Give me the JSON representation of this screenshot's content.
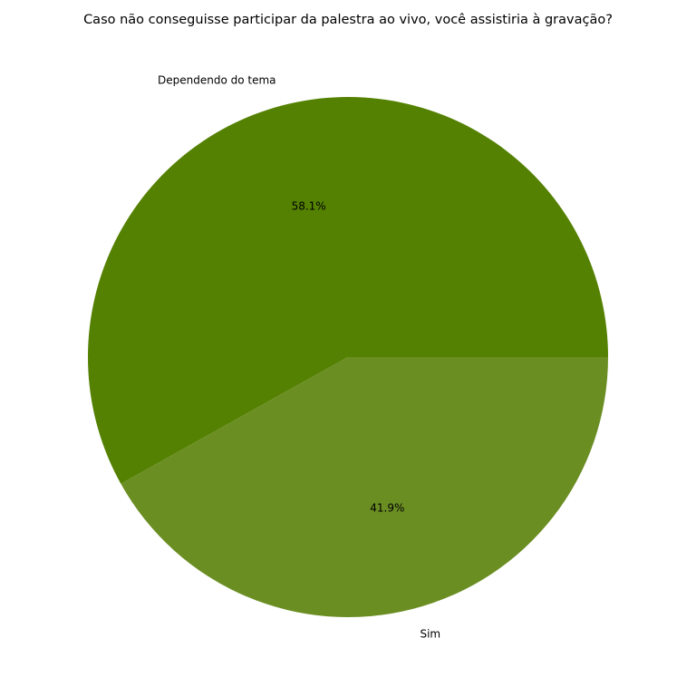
{
  "chart_data": {
    "type": "pie",
    "title": "Caso não conseguisse participar da palestra ao vivo, você assistiria à gravação?",
    "slices": [
      {
        "label": "Dependendo do tema",
        "value": 58.1,
        "pct_label": "58.1%",
        "color": "#548102"
      },
      {
        "label": "Sim",
        "value": 41.9,
        "pct_label": "41.9%",
        "color": "#6b8e23"
      }
    ],
    "start_angle_deg": 0,
    "direction": "counterclockwise",
    "legend": "none"
  }
}
